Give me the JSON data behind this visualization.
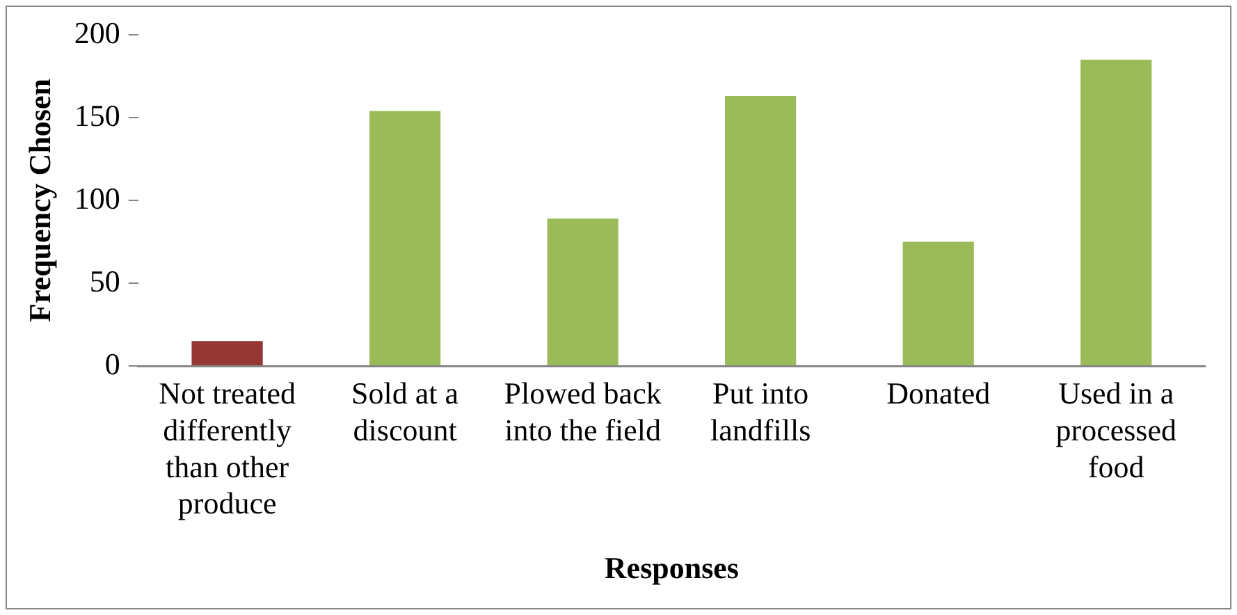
{
  "chart_data": {
    "type": "bar",
    "xlabel": "Responses",
    "ylabel": "Frequency Chosen",
    "categories": [
      "Not treated differently than other produce",
      "Sold at a discount",
      "Plowed back into the field",
      "Put into landfills",
      "Donated",
      "Used in a processed food"
    ],
    "values": [
      15,
      154,
      89,
      163,
      75,
      185
    ],
    "colors": [
      "#953735",
      "#9bbb59",
      "#9bbb59",
      "#9bbb59",
      "#9bbb59",
      "#9bbb59"
    ],
    "ylim": [
      0,
      200
    ],
    "yticks": [
      0,
      50,
      100,
      150,
      200
    ],
    "grid": false,
    "legend": false
  }
}
